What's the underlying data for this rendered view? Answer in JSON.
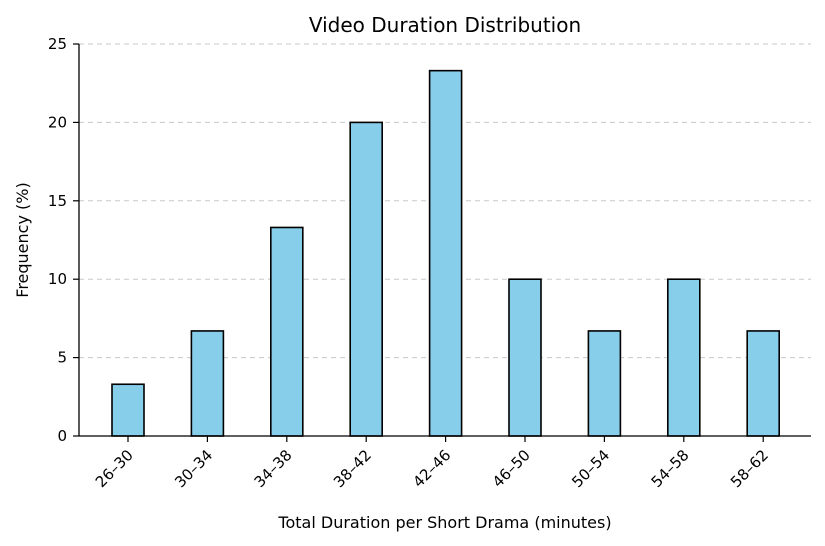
{
  "chart_data": {
    "type": "bar",
    "title": "Video Duration Distribution",
    "xlabel": "Total Duration per Short Drama (minutes)",
    "ylabel": "Frequency (%)",
    "categories": [
      "26–30",
      "30–34",
      "34–38",
      "38–42",
      "42–46",
      "46–50",
      "50–54",
      "54–58",
      "58–62"
    ],
    "values": [
      3.3,
      6.7,
      13.3,
      20.0,
      23.3,
      10.0,
      6.7,
      10.0,
      6.7
    ],
    "ylim": [
      0,
      25
    ],
    "yticks": [
      0,
      5,
      10,
      15,
      20,
      25
    ],
    "grid": "y-dashed",
    "bar_color": "#87ceeb",
    "edge_color": "#000000"
  }
}
